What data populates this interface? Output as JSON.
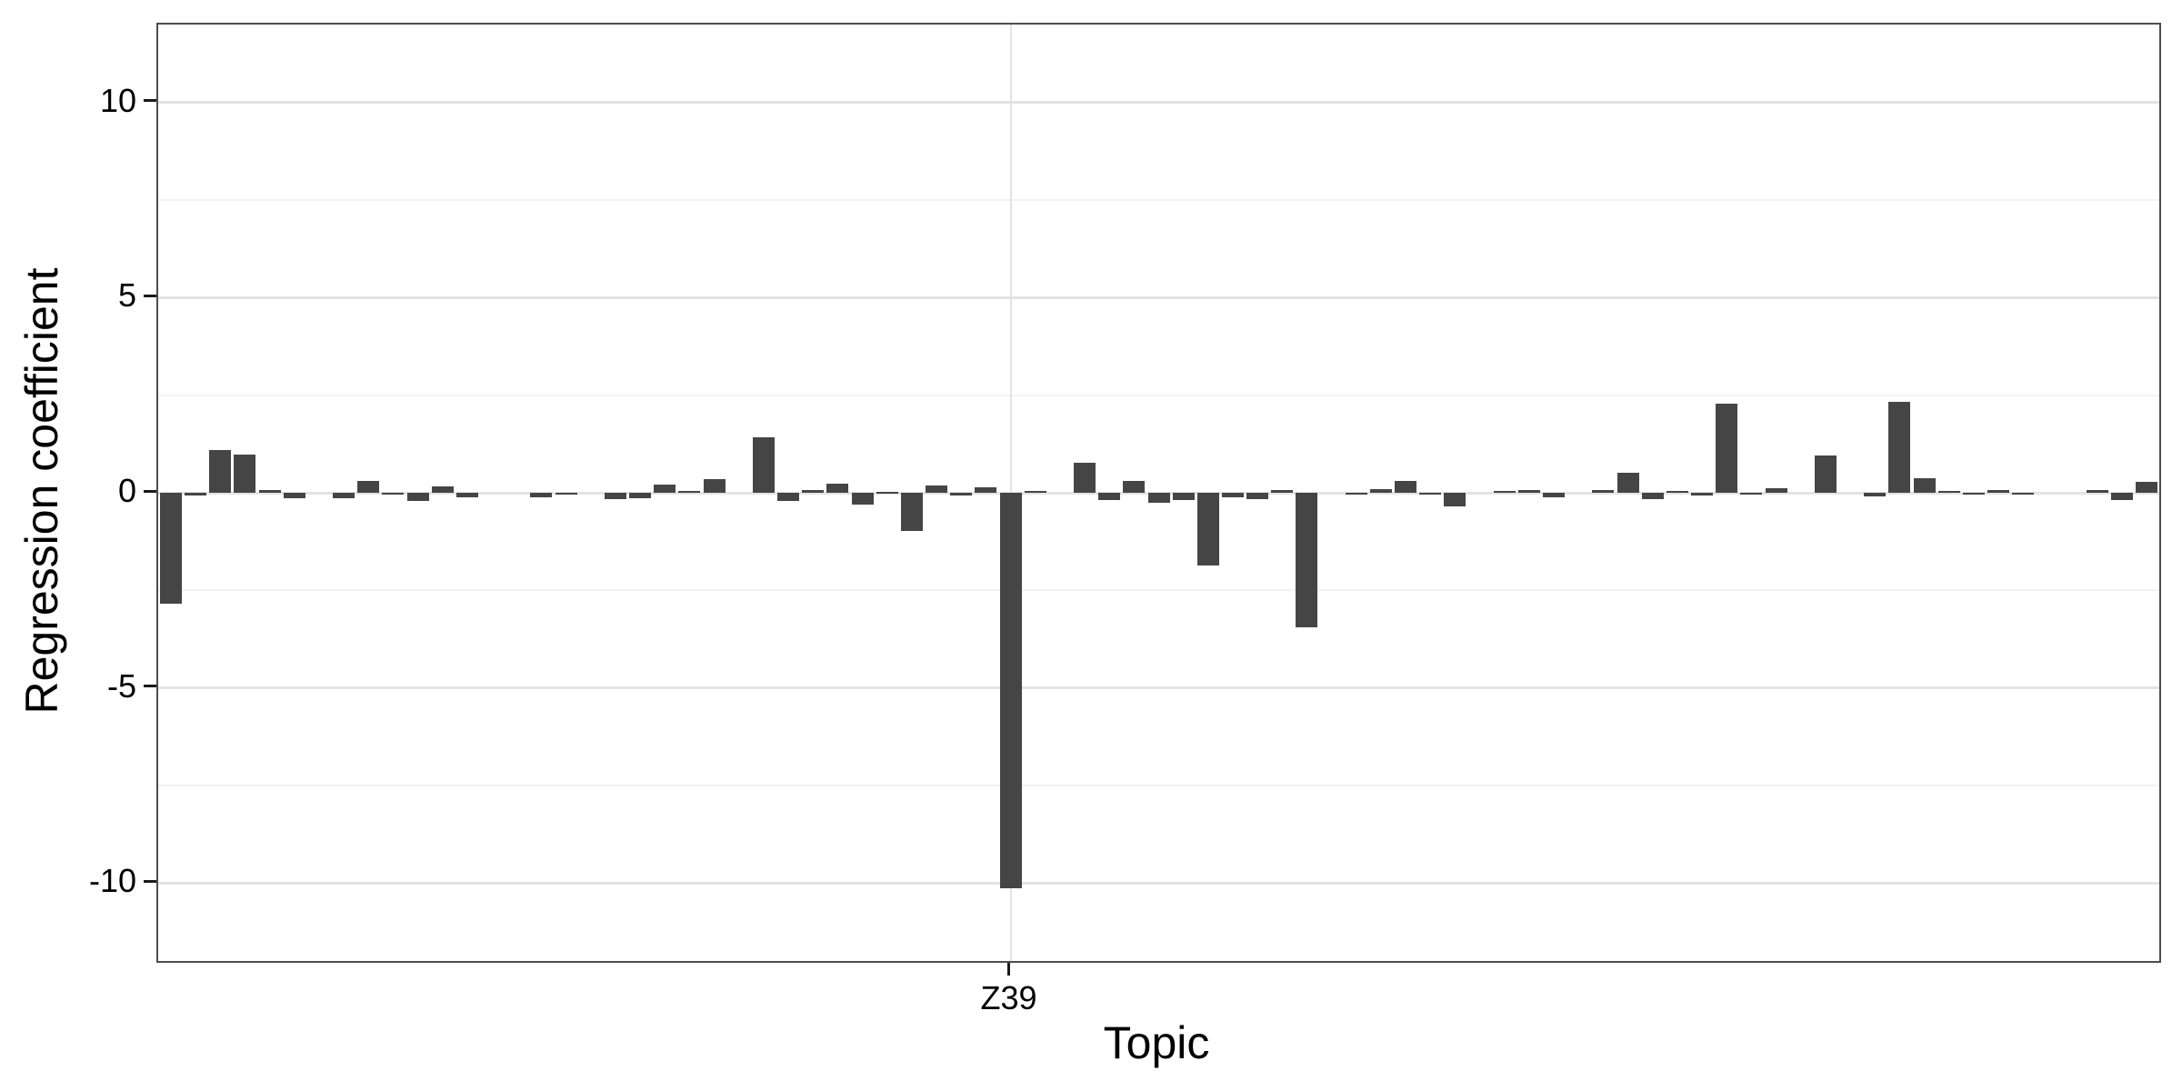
{
  "chart_data": {
    "type": "bar",
    "title": "",
    "xlabel": "Topic",
    "ylabel": "Regression coefficient",
    "ylim": [
      -12,
      12
    ],
    "grid": "on",
    "legend_position": "none",
    "y_major_breaks": [
      10,
      5,
      0,
      -5,
      -10
    ],
    "y_tick_labels": [
      "10",
      "5",
      "0",
      "-5",
      "-10"
    ],
    "y_minor_breaks": [
      7.5,
      2.5,
      -2.5,
      -7.5
    ],
    "n_topics": 81,
    "x_tick": {
      "slot": 35,
      "label": "Z39"
    },
    "values": [
      -2.85,
      -0.07,
      1.1,
      0.98,
      0.07,
      -0.14,
      0,
      -0.15,
      0.3,
      -0.05,
      -0.22,
      0.16,
      -0.12,
      0,
      0,
      -0.11,
      -0.05,
      0,
      -0.17,
      -0.14,
      0.2,
      0.05,
      0.36,
      0,
      1.42,
      -0.21,
      0.06,
      0.24,
      -0.31,
      0.03,
      -0.99,
      0.19,
      -0.06,
      0.15,
      -10.13,
      0.05,
      0,
      0.78,
      -0.19,
      0.3,
      -0.25,
      -0.19,
      -1.87,
      -0.12,
      -0.17,
      0.06,
      -3.45,
      0,
      -0.05,
      0.09,
      0.31,
      -0.04,
      -0.35,
      0,
      0.05,
      0.06,
      -0.11,
      0,
      0.08,
      0.51,
      -0.16,
      0.04,
      -0.08,
      2.28,
      -0.05,
      0.11,
      0,
      0.96,
      0,
      -0.09,
      2.33,
      0.37,
      0.05,
      -0.05,
      0.06,
      -0.05,
      0,
      0,
      0.08,
      -0.19,
      0.29
    ],
    "colors": {
      "bar": "#454545",
      "panel_border": "#4d4d4d",
      "grid_major": "#e3e3e3",
      "grid_minor": "#f2f2f2",
      "tick": "#1a1a1a",
      "text": "#000000",
      "background": "#ffffff"
    }
  }
}
